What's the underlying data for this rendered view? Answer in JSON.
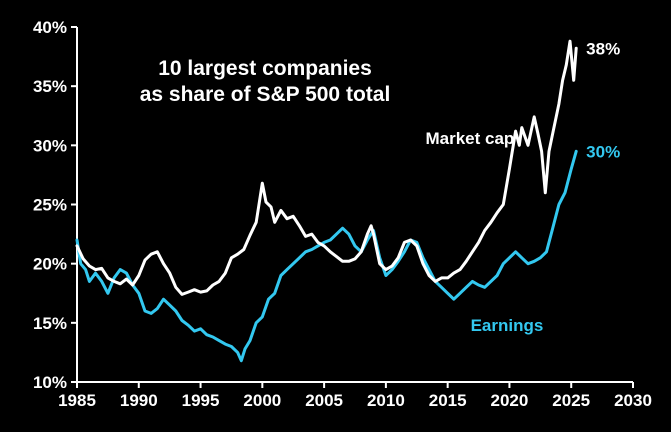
{
  "colors": {
    "background": "#000000",
    "axis": "#ffffff",
    "market_cap": "#ffffff",
    "earnings": "#33c8f0"
  },
  "chart_data": {
    "type": "line",
    "title_lines": [
      "10 largest companies",
      "as share of S&P 500 total"
    ],
    "xlabel": "",
    "ylabel": "",
    "xlim": [
      1985,
      2030
    ],
    "ylim": [
      10,
      40
    ],
    "x_ticks": [
      1985,
      1990,
      1995,
      2000,
      2005,
      2010,
      2015,
      2020,
      2025,
      2030
    ],
    "x_tick_labels": [
      "1985",
      "1990",
      "1995",
      "2000",
      "2005",
      "2010",
      "2015",
      "2020",
      "2025",
      "2030"
    ],
    "y_ticks": [
      10,
      15,
      20,
      25,
      30,
      35,
      40
    ],
    "y_tick_labels": [
      "10%",
      "15%",
      "20%",
      "25%",
      "30%",
      "35%",
      "40%"
    ],
    "grid": false,
    "legend": "none",
    "series": [
      {
        "name": "Market cap",
        "end_label": "38%",
        "color": "#ffffff",
        "x": [
          1985.0,
          1985.5,
          1986.0,
          1986.5,
          1987.0,
          1987.5,
          1988.0,
          1988.5,
          1989.0,
          1989.5,
          1990.0,
          1990.5,
          1991.0,
          1991.5,
          1992.0,
          1992.5,
          1993.0,
          1993.5,
          1994.0,
          1994.5,
          1995.0,
          1995.5,
          1996.0,
          1996.5,
          1997.0,
          1997.5,
          1998.0,
          1998.5,
          1999.0,
          1999.5,
          2000.0,
          2000.3,
          2000.7,
          2001.0,
          2001.5,
          2002.0,
          2002.5,
          2003.0,
          2003.5,
          2004.0,
          2004.5,
          2005.0,
          2005.5,
          2006.0,
          2006.5,
          2007.0,
          2007.5,
          2008.0,
          2008.5,
          2008.8,
          2009.0,
          2009.5,
          2010.0,
          2010.5,
          2011.0,
          2011.5,
          2012.0,
          2012.5,
          2013.0,
          2013.5,
          2014.0,
          2014.5,
          2015.0,
          2015.5,
          2016.0,
          2016.5,
          2017.0,
          2017.5,
          2018.0,
          2018.5,
          2019.0,
          2019.5,
          2020.0,
          2020.5,
          2020.8,
          2021.0,
          2021.5,
          2022.0,
          2022.3,
          2022.6,
          2022.9,
          2023.2,
          2023.5,
          2024.0,
          2024.3,
          2024.6,
          2024.9,
          2025.2,
          2025.4
        ],
        "values": [
          21.5,
          20.4,
          19.8,
          19.5,
          19.6,
          18.8,
          18.5,
          18.3,
          18.7,
          18.2,
          19.0,
          20.3,
          20.8,
          21.0,
          20.0,
          19.2,
          18.0,
          17.4,
          17.6,
          17.8,
          17.6,
          17.7,
          18.2,
          18.5,
          19.2,
          20.5,
          20.8,
          21.2,
          22.4,
          23.5,
          26.8,
          25.2,
          24.8,
          23.5,
          24.5,
          23.8,
          24.0,
          23.2,
          22.3,
          22.5,
          21.8,
          21.5,
          21.0,
          20.6,
          20.2,
          20.2,
          20.4,
          21.0,
          22.5,
          23.2,
          22.5,
          20.0,
          19.5,
          19.8,
          20.5,
          21.8,
          22.0,
          21.5,
          20.0,
          19.0,
          18.5,
          18.8,
          18.8,
          19.2,
          19.5,
          20.2,
          21.0,
          21.8,
          22.8,
          23.5,
          24.3,
          25.0,
          28.0,
          31.2,
          30.0,
          31.5,
          30.0,
          32.4,
          31.0,
          29.5,
          26.0,
          29.5,
          31.0,
          33.5,
          35.5,
          36.8,
          38.8,
          35.5,
          38.2
        ]
      },
      {
        "name": "Earnings",
        "end_label": "30%",
        "color": "#33c8f0",
        "x": [
          1985.0,
          1985.3,
          1985.7,
          1986.0,
          1986.5,
          1987.0,
          1987.5,
          1988.0,
          1988.5,
          1989.0,
          1989.5,
          1990.0,
          1990.5,
          1991.0,
          1991.5,
          1992.0,
          1992.5,
          1993.0,
          1993.5,
          1994.0,
          1994.5,
          1995.0,
          1995.5,
          1996.0,
          1996.5,
          1997.0,
          1997.5,
          1998.0,
          1998.3,
          1998.6,
          1999.0,
          1999.5,
          2000.0,
          2000.5,
          2001.0,
          2001.5,
          2002.0,
          2002.5,
          2003.0,
          2003.5,
          2004.0,
          2004.5,
          2005.0,
          2005.5,
          2006.0,
          2006.5,
          2007.0,
          2007.5,
          2008.0,
          2008.5,
          2009.0,
          2009.5,
          2010.0,
          2010.5,
          2011.0,
          2011.5,
          2012.0,
          2012.5,
          2013.0,
          2013.5,
          2014.0,
          2014.5,
          2015.0,
          2015.5,
          2016.0,
          2016.5,
          2017.0,
          2017.5,
          2018.0,
          2018.5,
          2019.0,
          2019.5,
          2020.0,
          2020.5,
          2021.0,
          2021.5,
          2022.0,
          2022.5,
          2023.0,
          2023.5,
          2024.0,
          2024.5,
          2025.0,
          2025.4
        ],
        "values": [
          22.0,
          20.0,
          19.5,
          18.5,
          19.2,
          18.5,
          17.5,
          18.8,
          19.5,
          19.2,
          18.2,
          17.5,
          16.0,
          15.8,
          16.2,
          17.0,
          16.5,
          16.0,
          15.2,
          14.8,
          14.3,
          14.5,
          14.0,
          13.8,
          13.5,
          13.2,
          13.0,
          12.5,
          11.8,
          12.8,
          13.5,
          15.0,
          15.5,
          17.0,
          17.5,
          19.0,
          19.5,
          20.0,
          20.5,
          21.0,
          21.2,
          21.5,
          21.8,
          22.0,
          22.5,
          23.0,
          22.5,
          21.5,
          21.0,
          22.0,
          22.8,
          20.5,
          19.0,
          19.5,
          20.2,
          21.0,
          22.0,
          21.8,
          20.5,
          19.5,
          18.5,
          18.0,
          17.5,
          17.0,
          17.5,
          18.0,
          18.5,
          18.2,
          18.0,
          18.5,
          19.0,
          20.0,
          20.5,
          21.0,
          20.5,
          20.0,
          20.2,
          20.5,
          21.0,
          23.0,
          25.0,
          26.0,
          28.0,
          29.5
        ]
      }
    ],
    "annotations": [
      {
        "text": "Market cap",
        "x": 2016.8,
        "y": 30.1,
        "color": "#ffffff"
      },
      {
        "text": "Earnings",
        "x": 2019.8,
        "y": 14.3,
        "color": "#33c8f0"
      }
    ]
  }
}
